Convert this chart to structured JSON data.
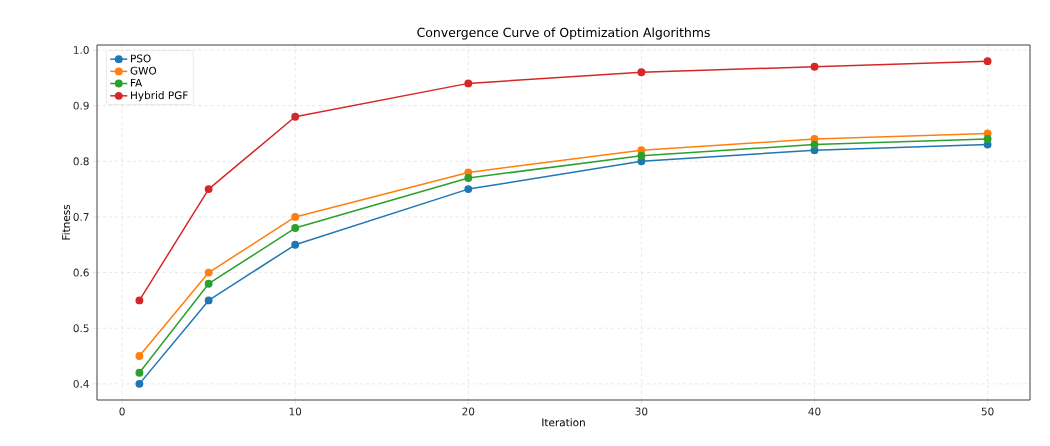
{
  "chart_data": {
    "type": "line",
    "title": "Convergence Curve of Optimization Algorithms",
    "xlabel": "Iteration",
    "ylabel": "Fitness",
    "x": [
      1,
      5,
      10,
      20,
      30,
      40,
      50
    ],
    "series": [
      {
        "name": "PSO",
        "color": "#1f77b4",
        "values": [
          0.4,
          0.55,
          0.65,
          0.75,
          0.8,
          0.82,
          0.83
        ]
      },
      {
        "name": "GWO",
        "color": "#ff7f0e",
        "values": [
          0.45,
          0.6,
          0.7,
          0.78,
          0.82,
          0.84,
          0.85
        ]
      },
      {
        "name": "FA",
        "color": "#2ca02c",
        "values": [
          0.42,
          0.58,
          0.68,
          0.77,
          0.81,
          0.83,
          0.84
        ]
      },
      {
        "name": "Hybrid PGF",
        "color": "#d62728",
        "values": [
          0.55,
          0.75,
          0.88,
          0.94,
          0.96,
          0.97,
          0.98
        ]
      }
    ],
    "xlim": [
      -1.45,
      52.45
    ],
    "ylim": [
      0.371,
      1.009
    ],
    "xticks": [
      0,
      10,
      20,
      30,
      40,
      50
    ],
    "yticks": [
      {
        "value": 0.4,
        "label": "0.4"
      },
      {
        "value": 0.5,
        "label": "0.5"
      },
      {
        "value": 0.6,
        "label": "0.6"
      },
      {
        "value": 0.7,
        "label": "0.7"
      },
      {
        "value": 0.8,
        "label": "0.8"
      },
      {
        "value": 0.9,
        "label": "0.9"
      },
      {
        "value": 1.0,
        "label": "1.0"
      }
    ],
    "grid": true,
    "legend": "top left",
    "marker": "circle",
    "line_style": "solid"
  }
}
